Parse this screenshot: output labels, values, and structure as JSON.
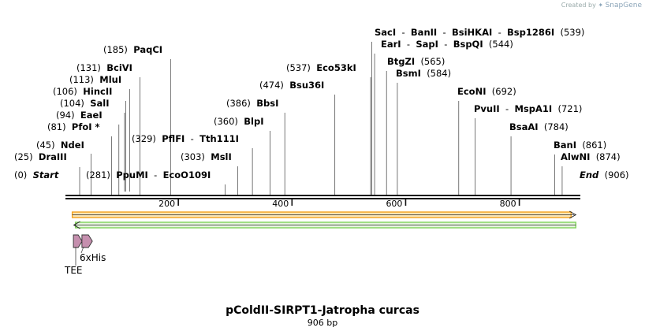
{
  "credit": {
    "prefix": "Created by",
    "brand": "SnapGene"
  },
  "plasmid": {
    "name": "pColdII-SIRPT1-Jatropha curcas",
    "length_label": "906 bp",
    "length": 906
  },
  "ticks": [
    {
      "value": 200,
      "label": "200"
    },
    {
      "value": 400,
      "label": "400"
    },
    {
      "value": 600,
      "label": "600"
    },
    {
      "value": 800,
      "label": "800"
    }
  ],
  "site_groups": [
    {
      "pos": 0,
      "pos_label": "(0)",
      "names": [
        "Start"
      ],
      "side": "left",
      "italic": true
    },
    {
      "pos": 25,
      "pos_label": "(25)",
      "names": [
        "DraIII"
      ],
      "side": "left"
    },
    {
      "pos": 45,
      "pos_label": "(45)",
      "names": [
        "NdeI"
      ],
      "side": "left"
    },
    {
      "pos": 81,
      "pos_label": "(81)",
      "names": [
        "PfoI *"
      ],
      "side": "left"
    },
    {
      "pos": 94,
      "pos_label": "(94)",
      "names": [
        "EaeI"
      ],
      "side": "left"
    },
    {
      "pos": 104,
      "pos_label": "(104)",
      "names": [
        "SalI"
      ],
      "side": "left"
    },
    {
      "pos": 106,
      "pos_label": "(106)",
      "names": [
        "HincII"
      ],
      "side": "left"
    },
    {
      "pos": 113,
      "pos_label": "(113)",
      "names": [
        "MluI"
      ],
      "side": "left"
    },
    {
      "pos": 131,
      "pos_label": "(131)",
      "names": [
        "BciVI"
      ],
      "side": "left"
    },
    {
      "pos": 185,
      "pos_label": "(185)",
      "names": [
        "PaqCI"
      ],
      "side": "left"
    },
    {
      "pos": 281,
      "pos_label": "(281)",
      "names": [
        "PpuMI",
        "EcoO109I"
      ],
      "side": "left"
    },
    {
      "pos": 303,
      "pos_label": "(303)",
      "names": [
        "MslI"
      ],
      "side": "left"
    },
    {
      "pos": 329,
      "pos_label": "(329)",
      "names": [
        "PflFI",
        "Tth111I"
      ],
      "side": "left"
    },
    {
      "pos": 360,
      "pos_label": "(360)",
      "names": [
        "BlpI"
      ],
      "side": "left"
    },
    {
      "pos": 386,
      "pos_label": "(386)",
      "names": [
        "BbsI"
      ],
      "side": "left"
    },
    {
      "pos": 474,
      "pos_label": "(474)",
      "names": [
        "Bsu36I"
      ],
      "side": "left"
    },
    {
      "pos": 537,
      "pos_label": "(537)",
      "names": [
        "Eco53kI"
      ],
      "side": "left"
    },
    {
      "pos": 539,
      "pos_label": "(539)",
      "names": [
        "SacI",
        "BanII",
        "BsiHKAI",
        "Bsp1286I"
      ],
      "side": "right"
    },
    {
      "pos": 544,
      "pos_label": "(544)",
      "names": [
        "EarI",
        "SapI",
        "BspQI"
      ],
      "side": "right"
    },
    {
      "pos": 565,
      "pos_label": "(565)",
      "names": [
        "BtgZI"
      ],
      "side": "right"
    },
    {
      "pos": 584,
      "pos_label": "(584)",
      "names": [
        "BsmI"
      ],
      "side": "right"
    },
    {
      "pos": 692,
      "pos_label": "(692)",
      "names": [
        "EcoNI"
      ],
      "side": "right"
    },
    {
      "pos": 721,
      "pos_label": "(721)",
      "names": [
        "PvuII",
        "MspA1I"
      ],
      "side": "right"
    },
    {
      "pos": 784,
      "pos_label": "(784)",
      "names": [
        "BsaAI"
      ],
      "side": "right"
    },
    {
      "pos": 861,
      "pos_label": "(861)",
      "names": [
        "BanI"
      ],
      "side": "right"
    },
    {
      "pos": 874,
      "pos_label": "(874)",
      "names": [
        "AlwNI"
      ],
      "side": "right"
    },
    {
      "pos": 906,
      "pos_label": "(906)",
      "names": [
        "End"
      ],
      "side": "right",
      "italic": true
    }
  ],
  "features": [
    {
      "name": "TEE",
      "start": 14,
      "end": 28
    },
    {
      "name": "6xHis",
      "start": 29,
      "end": 46
    }
  ],
  "colors": {
    "forward_bar": "#f4a21c",
    "forward_fill": "#fbe6b6",
    "reverse_bar": "#7fd35a",
    "reverse_fill": "#e8f7df",
    "feature": "#c58fae",
    "line": "#555555"
  }
}
